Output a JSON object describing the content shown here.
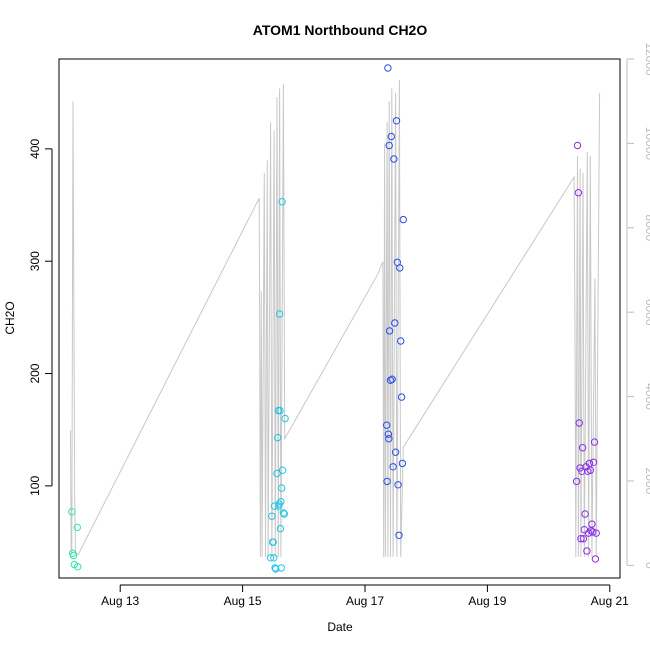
{
  "chart_data": {
    "type": "scatter",
    "title": "ATOM1 Northbound CH2O",
    "xlabel": "Date",
    "ylabel": "CH2O",
    "xlim": [
      "2016-08-12 00:00",
      "2016-08-21 04:00"
    ],
    "ylim": [
      18,
      480
    ],
    "y2lim": [
      -300,
      12000
    ],
    "x_ticks": [
      {
        "date": "2016-08-13 00:00",
        "label": "Aug 13"
      },
      {
        "date": "2016-08-15 00:00",
        "label": "Aug 15"
      },
      {
        "date": "2016-08-17 00:00",
        "label": "Aug 17"
      },
      {
        "date": "2016-08-19 00:00",
        "label": "Aug 19"
      },
      {
        "date": "2016-08-21 00:00",
        "label": "Aug 21"
      }
    ],
    "y_ticks": [
      100,
      200,
      300,
      400
    ],
    "y2_ticks": [
      0,
      2000,
      4000,
      6000,
      8000,
      10000,
      12000
    ],
    "grid": false,
    "legend": "none",
    "colors": {
      "line": "#c8c8c8",
      "axis": "#000000",
      "axis_right": "#bdbdbd"
    },
    "series": [
      {
        "color": "#2ee6a8",
        "points": [
          [
            "2016-08-12 05:00",
            77
          ],
          [
            "2016-08-12 05:20",
            40
          ],
          [
            "2016-08-12 05:40",
            38
          ],
          [
            "2016-08-12 06:00",
            30
          ],
          [
            "2016-08-12 07:10",
            63
          ],
          [
            "2016-08-12 07:20",
            28
          ]
        ]
      },
      {
        "color": "#22c4e8",
        "points": [
          [
            "2016-08-15 11:00",
            36
          ],
          [
            "2016-08-15 11:30",
            73
          ],
          [
            "2016-08-15 11:45",
            50
          ],
          [
            "2016-08-15 12:00",
            50
          ],
          [
            "2016-08-15 12:15",
            36
          ],
          [
            "2016-08-15 12:30",
            82
          ],
          [
            "2016-08-15 12:45",
            27
          ],
          [
            "2016-08-15 13:00",
            26
          ],
          [
            "2016-08-15 13:30",
            111
          ],
          [
            "2016-08-15 13:45",
            143
          ],
          [
            "2016-08-15 14:00",
            167
          ],
          [
            "2016-08-15 14:10",
            82
          ],
          [
            "2016-08-15 14:20",
            84
          ],
          [
            "2016-08-15 14:30",
            253
          ],
          [
            "2016-08-15 14:40",
            167
          ],
          [
            "2016-08-15 14:50",
            62
          ],
          [
            "2016-08-15 15:00",
            86
          ],
          [
            "2016-08-15 15:10",
            27
          ],
          [
            "2016-08-15 15:20",
            98
          ],
          [
            "2016-08-15 15:30",
            353
          ],
          [
            "2016-08-15 15:40",
            114
          ],
          [
            "2016-08-15 16:00",
            76
          ],
          [
            "2016-08-15 16:20",
            75
          ],
          [
            "2016-08-15 16:40",
            160
          ]
        ]
      },
      {
        "color": "#2a4ee8",
        "points": [
          [
            "2016-08-17 08:30",
            154
          ],
          [
            "2016-08-17 08:40",
            104
          ],
          [
            "2016-08-17 09:00",
            472
          ],
          [
            "2016-08-17 09:10",
            146
          ],
          [
            "2016-08-17 09:20",
            142
          ],
          [
            "2016-08-17 09:30",
            403
          ],
          [
            "2016-08-17 09:40",
            238
          ],
          [
            "2016-08-17 10:00",
            194
          ],
          [
            "2016-08-17 10:20",
            411
          ],
          [
            "2016-08-17 10:40",
            195
          ],
          [
            "2016-08-17 11:00",
            117
          ],
          [
            "2016-08-17 11:20",
            391
          ],
          [
            "2016-08-17 11:40",
            245
          ],
          [
            "2016-08-17 12:00",
            130
          ],
          [
            "2016-08-17 12:20",
            425
          ],
          [
            "2016-08-17 12:40",
            299
          ],
          [
            "2016-08-17 13:00",
            101
          ],
          [
            "2016-08-17 13:20",
            56
          ],
          [
            "2016-08-17 13:40",
            294
          ],
          [
            "2016-08-17 14:00",
            229
          ],
          [
            "2016-08-17 14:20",
            179
          ],
          [
            "2016-08-17 14:40",
            120
          ],
          [
            "2016-08-17 15:00",
            337
          ]
        ]
      },
      {
        "color": "#8a2ee8",
        "points": [
          [
            "2016-08-20 11:00",
            104
          ],
          [
            "2016-08-20 11:20",
            403
          ],
          [
            "2016-08-20 11:40",
            361
          ],
          [
            "2016-08-20 12:00",
            156
          ],
          [
            "2016-08-20 12:20",
            116
          ],
          [
            "2016-08-20 12:40",
            53
          ],
          [
            "2016-08-20 13:00",
            113
          ],
          [
            "2016-08-20 13:20",
            134
          ],
          [
            "2016-08-20 13:40",
            53
          ],
          [
            "2016-08-20 14:00",
            61
          ],
          [
            "2016-08-20 14:20",
            75
          ],
          [
            "2016-08-20 14:40",
            117
          ],
          [
            "2016-08-20 15:00",
            42
          ],
          [
            "2016-08-20 15:20",
            113
          ],
          [
            "2016-08-20 15:40",
            58
          ],
          [
            "2016-08-20 16:00",
            120
          ],
          [
            "2016-08-20 16:20",
            114
          ],
          [
            "2016-08-20 16:40",
            60
          ],
          [
            "2016-08-20 17:00",
            66
          ],
          [
            "2016-08-20 17:20",
            59
          ],
          [
            "2016-08-20 17:40",
            121
          ],
          [
            "2016-08-20 18:00",
            139
          ],
          [
            "2016-08-20 18:20",
            35
          ],
          [
            "2016-08-20 18:40",
            58
          ]
        ]
      }
    ],
    "secondary_line": {
      "axis": "right",
      "points": [
        [
          "2016-08-12 04:30",
          3200
        ],
        [
          "2016-08-12 04:45",
          400
        ],
        [
          "2016-08-12 05:00",
          250
        ],
        [
          "2016-08-12 05:30",
          11000
        ],
        [
          "2016-08-12 06:10",
          1600
        ],
        [
          "2016-08-12 06:30",
          300
        ],
        [
          "2016-08-12 07:30",
          250
        ],
        [
          "2016-08-15 06:30",
          8700
        ],
        [
          "2016-08-15 07:00",
          200
        ],
        [
          "2016-08-15 07:20",
          6500
        ],
        [
          "2016-08-15 07:40",
          200
        ],
        [
          "2016-08-15 08:30",
          9300
        ],
        [
          "2016-08-15 09:00",
          200
        ],
        [
          "2016-08-15 09:40",
          9600
        ],
        [
          "2016-08-15 10:00",
          200
        ],
        [
          "2016-08-15 11:00",
          10500
        ],
        [
          "2016-08-15 11:30",
          200
        ],
        [
          "2016-08-15 12:20",
          10300
        ],
        [
          "2016-08-15 12:50",
          200
        ],
        [
          "2016-08-15 13:30",
          11100
        ],
        [
          "2016-08-15 14:00",
          200
        ],
        [
          "2016-08-15 14:30",
          11300
        ],
        [
          "2016-08-15 15:00",
          200
        ],
        [
          "2016-08-15 16:00",
          11400
        ],
        [
          "2016-08-15 16:30",
          3000
        ],
        [
          "2016-08-17 05:00",
          6900
        ],
        [
          "2016-08-17 07:00",
          7200
        ],
        [
          "2016-08-17 07:20",
          200
        ],
        [
          "2016-08-17 07:40",
          10000
        ],
        [
          "2016-08-17 08:00",
          200
        ],
        [
          "2016-08-17 08:40",
          10500
        ],
        [
          "2016-08-17 09:00",
          200
        ],
        [
          "2016-08-17 09:30",
          11000
        ],
        [
          "2016-08-17 10:00",
          200
        ],
        [
          "2016-08-17 10:30",
          11300
        ],
        [
          "2016-08-17 11:00",
          200
        ],
        [
          "2016-08-17 12:00",
          11200
        ],
        [
          "2016-08-17 12:30",
          200
        ],
        [
          "2016-08-17 13:30",
          11500
        ],
        [
          "2016-08-17 14:00",
          200
        ],
        [
          "2016-08-17 15:00",
          2800
        ],
        [
          "2016-08-20 10:00",
          9200
        ],
        [
          "2016-08-20 10:20",
          5500
        ],
        [
          "2016-08-20 10:40",
          200
        ],
        [
          "2016-08-20 11:20",
          9700
        ],
        [
          "2016-08-20 11:40",
          200
        ],
        [
          "2016-08-20 12:20",
          9400
        ],
        [
          "2016-08-20 12:40",
          200
        ],
        [
          "2016-08-20 13:30",
          9300
        ],
        [
          "2016-08-20 14:00",
          200
        ],
        [
          "2016-08-20 15:10",
          9800
        ],
        [
          "2016-08-20 15:40",
          200
        ],
        [
          "2016-08-20 16:20",
          9700
        ],
        [
          "2016-08-20 17:00",
          200
        ],
        [
          "2016-08-20 18:10",
          6800
        ],
        [
          "2016-08-20 18:40",
          200
        ],
        [
          "2016-08-20 20:00",
          11200
        ]
      ]
    }
  }
}
